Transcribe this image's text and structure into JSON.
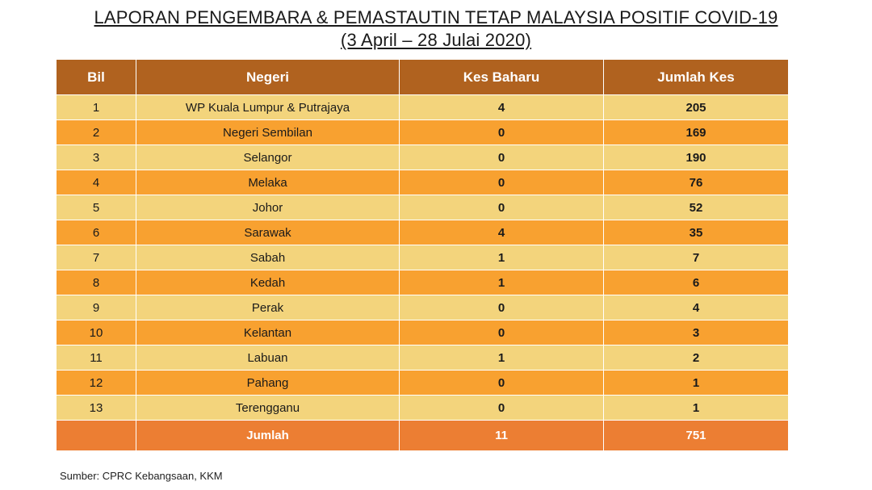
{
  "title": {
    "line1": "LAPORAN PENGEMBARA & PEMASTAUTIN TETAP MALAYSIA POSITIF COVID-19",
    "line2": "(3 April –  28 Julai 2020)"
  },
  "table": {
    "headers": [
      "Bil",
      "Negeri",
      "Kes Baharu",
      "Jumlah Kes"
    ],
    "rows": [
      {
        "bil": "1",
        "negeri": "WP Kuala Lumpur & Putrajaya",
        "baharu": "4",
        "jumlah": "205"
      },
      {
        "bil": "2",
        "negeri": "Negeri Sembilan",
        "baharu": "0",
        "jumlah": "169"
      },
      {
        "bil": "3",
        "negeri": "Selangor",
        "baharu": "0",
        "jumlah": "190"
      },
      {
        "bil": "4",
        "negeri": "Melaka",
        "baharu": "0",
        "jumlah": "76"
      },
      {
        "bil": "5",
        "negeri": "Johor",
        "baharu": "0",
        "jumlah": "52"
      },
      {
        "bil": "6",
        "negeri": "Sarawak",
        "baharu": "4",
        "jumlah": "35"
      },
      {
        "bil": "7",
        "negeri": "Sabah",
        "baharu": "1",
        "jumlah": "7"
      },
      {
        "bil": "8",
        "negeri": "Kedah",
        "baharu": "1",
        "jumlah": "6"
      },
      {
        "bil": "9",
        "negeri": "Perak",
        "baharu": "0",
        "jumlah": "4"
      },
      {
        "bil": "10",
        "negeri": "Kelantan",
        "baharu": "0",
        "jumlah": "3"
      },
      {
        "bil": "11",
        "negeri": "Labuan",
        "baharu": "1",
        "jumlah": "2"
      },
      {
        "bil": "12",
        "negeri": "Pahang",
        "baharu": "0",
        "jumlah": "1"
      },
      {
        "bil": "13",
        "negeri": "Terengganu",
        "baharu": "0",
        "jumlah": "1"
      }
    ],
    "total": {
      "label": "Jumlah",
      "baharu": "11",
      "jumlah": "751"
    }
  },
  "source": "Sumber: CPRC Kebangsaan, KKM",
  "colors": {
    "header": "#b0621f",
    "row_light": "#f3d47c",
    "row_dark": "#f8a130",
    "total": "#ec7e33"
  }
}
